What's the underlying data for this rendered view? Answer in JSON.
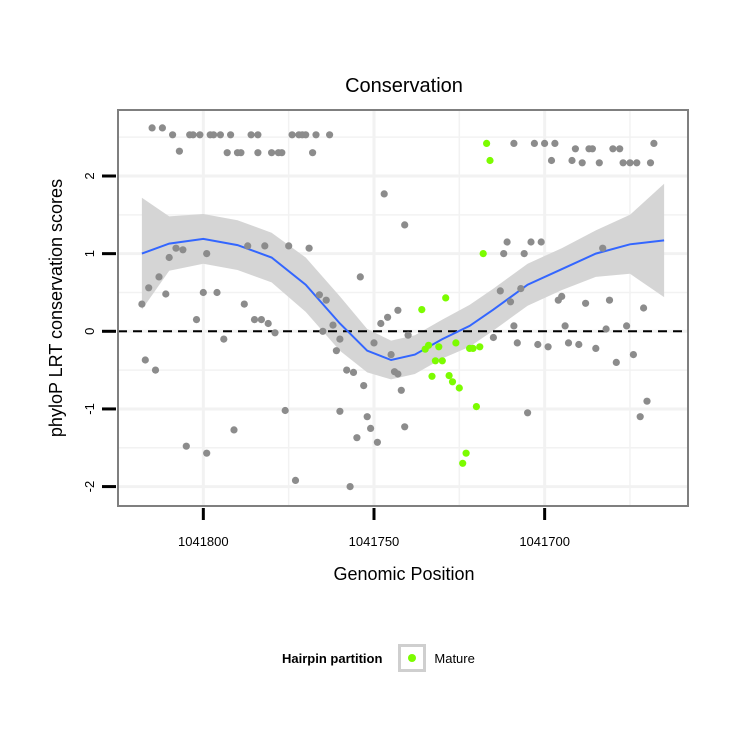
{
  "chart_data": {
    "type": "scatter",
    "title": "Conservation",
    "xlabel": "Genomic Position",
    "ylabel": "phyloP LRT conservation scores",
    "x_reversed": true,
    "xlim": [
      1041825,
      1041658
    ],
    "ylim": [
      -2.25,
      2.85
    ],
    "x_ticks": [
      1041800,
      1041750,
      1041700
    ],
    "y_ticks": [
      -2,
      -1,
      0,
      1,
      2
    ],
    "reference_line": {
      "y": 0,
      "style": "dashed"
    },
    "grid": true,
    "legend": {
      "position": "bottom",
      "title": "Hairpin partition",
      "entries": [
        "Mature"
      ]
    },
    "colors": {
      "other": "#8c8c8c",
      "Mature": "#7cfc00",
      "smooth": "#3366ff",
      "ribbon": "#d3d3d3",
      "panel_border": "#7f7f7f",
      "grid": "#f2f2f2"
    },
    "series": [
      {
        "name": "",
        "points": [
          [
            1041818,
            0.35
          ],
          [
            1041817,
            -0.37
          ],
          [
            1041816,
            0.56
          ],
          [
            1041815,
            2.62
          ],
          [
            1041814,
            -0.5
          ],
          [
            1041813,
            0.7
          ],
          [
            1041812,
            2.62
          ],
          [
            1041811,
            0.48
          ],
          [
            1041810,
            0.95
          ],
          [
            1041809,
            2.53
          ],
          [
            1041808,
            1.07
          ],
          [
            1041807,
            2.32
          ],
          [
            1041806,
            1.05
          ],
          [
            1041805,
            -1.48
          ],
          [
            1041804,
            2.53
          ],
          [
            1041803,
            2.53
          ],
          [
            1041802,
            0.15
          ],
          [
            1041801,
            2.53
          ],
          [
            1041800,
            0.5
          ],
          [
            1041799,
            1.0
          ],
          [
            1041799,
            -1.57
          ],
          [
            1041798,
            2.53
          ],
          [
            1041797,
            2.53
          ],
          [
            1041796,
            0.5
          ],
          [
            1041795,
            2.53
          ],
          [
            1041794,
            -0.1
          ],
          [
            1041793,
            2.3
          ],
          [
            1041792,
            2.53
          ],
          [
            1041791,
            -1.27
          ],
          [
            1041790,
            2.3
          ],
          [
            1041789,
            2.3
          ],
          [
            1041788,
            0.35
          ],
          [
            1041787,
            1.1
          ],
          [
            1041786,
            2.53
          ],
          [
            1041785,
            0.15
          ],
          [
            1041784,
            2.3
          ],
          [
            1041784,
            2.53
          ],
          [
            1041783,
            0.15
          ],
          [
            1041782,
            1.1
          ],
          [
            1041781,
            0.1
          ],
          [
            1041780,
            2.3
          ],
          [
            1041779,
            -0.02
          ],
          [
            1041778,
            2.3
          ],
          [
            1041777,
            2.3
          ],
          [
            1041776,
            -1.02
          ],
          [
            1041775,
            1.1
          ],
          [
            1041774,
            2.53
          ],
          [
            1041773,
            -1.92
          ],
          [
            1041772,
            2.53
          ],
          [
            1041771,
            2.53
          ],
          [
            1041770,
            2.53
          ],
          [
            1041769,
            1.07
          ],
          [
            1041768,
            2.3
          ],
          [
            1041767,
            2.53
          ],
          [
            1041766,
            0.47
          ],
          [
            1041765,
            0.0
          ],
          [
            1041764,
            0.4
          ],
          [
            1041763,
            2.53
          ],
          [
            1041762,
            0.08
          ],
          [
            1041761,
            -0.25
          ],
          [
            1041760,
            -0.1
          ],
          [
            1041760,
            -1.03
          ],
          [
            1041758,
            -0.5
          ],
          [
            1041757,
            -2.0
          ],
          [
            1041756,
            -0.53
          ],
          [
            1041755,
            -1.37
          ],
          [
            1041754,
            0.7
          ],
          [
            1041753,
            -0.7
          ],
          [
            1041752,
            -1.1
          ],
          [
            1041751,
            -1.25
          ],
          [
            1041750,
            -0.15
          ],
          [
            1041749,
            -1.43
          ],
          [
            1041748,
            0.1
          ],
          [
            1041747,
            1.77
          ],
          [
            1041746,
            0.18
          ],
          [
            1041745,
            -0.3
          ],
          [
            1041744,
            -0.52
          ],
          [
            1041743,
            0.27
          ],
          [
            1041743,
            -0.55
          ],
          [
            1041742,
            -0.76
          ],
          [
            1041741,
            1.37
          ],
          [
            1041741,
            -1.23
          ],
          [
            1041740,
            -0.05
          ],
          [
            1041715,
            -0.08
          ],
          [
            1041713,
            0.52
          ],
          [
            1041712,
            1.0
          ],
          [
            1041711,
            1.15
          ],
          [
            1041710,
            0.38
          ],
          [
            1041709,
            0.07
          ],
          [
            1041709,
            2.42
          ],
          [
            1041708,
            -0.15
          ],
          [
            1041707,
            0.55
          ],
          [
            1041706,
            1.0
          ],
          [
            1041705,
            -1.05
          ],
          [
            1041704,
            1.15
          ],
          [
            1041703,
            2.42
          ],
          [
            1041702,
            -0.17
          ],
          [
            1041701,
            1.15
          ],
          [
            1041700,
            2.42
          ],
          [
            1041699,
            -0.2
          ],
          [
            1041698,
            2.2
          ],
          [
            1041697,
            2.42
          ],
          [
            1041696,
            0.4
          ],
          [
            1041695,
            0.45
          ],
          [
            1041694,
            0.07
          ],
          [
            1041693,
            -0.15
          ],
          [
            1041692,
            2.2
          ],
          [
            1041691,
            2.35
          ],
          [
            1041690,
            -0.17
          ],
          [
            1041689,
            2.17
          ],
          [
            1041688,
            0.36
          ],
          [
            1041687,
            2.35
          ],
          [
            1041686,
            2.35
          ],
          [
            1041685,
            -0.22
          ],
          [
            1041684,
            2.17
          ],
          [
            1041683,
            1.07
          ],
          [
            1041682,
            0.03
          ],
          [
            1041681,
            0.4
          ],
          [
            1041680,
            2.35
          ],
          [
            1041679,
            -0.4
          ],
          [
            1041678,
            2.35
          ],
          [
            1041677,
            2.17
          ],
          [
            1041676,
            0.07
          ],
          [
            1041675,
            2.17
          ],
          [
            1041674,
            -0.3
          ],
          [
            1041673,
            2.17
          ],
          [
            1041672,
            -1.1
          ],
          [
            1041671,
            0.3
          ],
          [
            1041670,
            -0.9
          ],
          [
            1041669,
            2.17
          ],
          [
            1041668,
            2.42
          ]
        ]
      },
      {
        "name": "Mature",
        "points": [
          [
            1041736,
            0.28
          ],
          [
            1041735,
            -0.23
          ],
          [
            1041734,
            -0.18
          ],
          [
            1041733,
            -0.58
          ],
          [
            1041732,
            -0.38
          ],
          [
            1041731,
            -0.2
          ],
          [
            1041730,
            -0.38
          ],
          [
            1041729,
            0.43
          ],
          [
            1041728,
            -0.57
          ],
          [
            1041727,
            -0.65
          ],
          [
            1041726,
            -0.15
          ],
          [
            1041725,
            -0.73
          ],
          [
            1041724,
            -1.7
          ],
          [
            1041723,
            -1.57
          ],
          [
            1041722,
            -0.22
          ],
          [
            1041721,
            -0.22
          ],
          [
            1041720,
            -0.97
          ],
          [
            1041719,
            -0.2
          ],
          [
            1041718,
            1.0
          ],
          [
            1041717,
            2.42
          ],
          [
            1041716,
            2.2
          ]
        ]
      }
    ],
    "smooth": [
      [
        1041818,
        1.0
      ],
      [
        1041810,
        1.13
      ],
      [
        1041800,
        1.19
      ],
      [
        1041790,
        1.11
      ],
      [
        1041780,
        0.95
      ],
      [
        1041770,
        0.6
      ],
      [
        1041760,
        0.1
      ],
      [
        1041752,
        -0.25
      ],
      [
        1041745,
        -0.37
      ],
      [
        1041738,
        -0.3
      ],
      [
        1041730,
        -0.1
      ],
      [
        1041722,
        0.07
      ],
      [
        1041715,
        0.28
      ],
      [
        1041705,
        0.6
      ],
      [
        1041695,
        0.8
      ],
      [
        1041685,
        1.0
      ],
      [
        1041675,
        1.12
      ],
      [
        1041665,
        1.17
      ]
    ],
    "band": [
      [
        1041818,
        1.72,
        0.28
      ],
      [
        1041810,
        1.48,
        0.78
      ],
      [
        1041800,
        1.51,
        0.87
      ],
      [
        1041790,
        1.43,
        0.79
      ],
      [
        1041780,
        1.27,
        0.63
      ],
      [
        1041770,
        0.95,
        0.25
      ],
      [
        1041760,
        0.45,
        -0.25
      ],
      [
        1041752,
        0.03,
        -0.53
      ],
      [
        1041745,
        -0.12,
        -0.62
      ],
      [
        1041738,
        -0.05,
        -0.55
      ],
      [
        1041730,
        0.15,
        -0.35
      ],
      [
        1041722,
        0.34,
        -0.2
      ],
      [
        1041715,
        0.55,
        0.01
      ],
      [
        1041705,
        0.87,
        0.33
      ],
      [
        1041695,
        1.07,
        0.53
      ],
      [
        1041685,
        1.3,
        0.7
      ],
      [
        1041675,
        1.5,
        0.74
      ],
      [
        1041665,
        1.9,
        0.44
      ]
    ]
  }
}
